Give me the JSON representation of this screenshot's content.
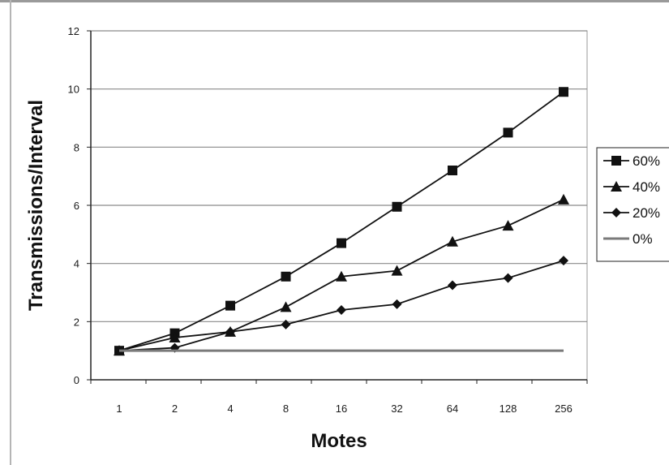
{
  "chart_data": {
    "type": "line",
    "title": "",
    "xlabel": "Motes",
    "ylabel": "Transmissions/Interval",
    "categories": [
      "1",
      "2",
      "4",
      "8",
      "16",
      "32",
      "64",
      "128",
      "256"
    ],
    "ylim": [
      0,
      12
    ],
    "yticks": [
      "0",
      "2",
      "4",
      "6",
      "8",
      "10",
      "12"
    ],
    "grid": "horizontal",
    "legend_position": "right",
    "series": [
      {
        "name": "60%",
        "marker": "square",
        "color": "#111111",
        "values": [
          1.0,
          1.6,
          2.55,
          3.55,
          4.7,
          5.95,
          7.2,
          8.5,
          9.9
        ]
      },
      {
        "name": "40%",
        "marker": "triangle",
        "color": "#111111",
        "values": [
          1.0,
          1.45,
          1.65,
          2.5,
          3.55,
          3.75,
          4.75,
          5.3,
          6.2
        ]
      },
      {
        "name": "20%",
        "marker": "diamond",
        "color": "#111111",
        "values": [
          1.0,
          1.1,
          1.65,
          1.9,
          2.4,
          2.6,
          3.25,
          3.5,
          4.1
        ]
      },
      {
        "name": "0%",
        "marker": "none",
        "color": "#7a7a7a",
        "values": [
          1.0,
          1.0,
          1.0,
          1.0,
          1.0,
          1.0,
          1.0,
          1.0,
          1.0
        ]
      }
    ]
  }
}
